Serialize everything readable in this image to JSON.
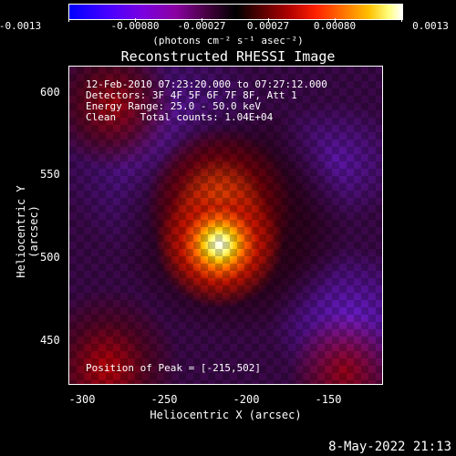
{
  "colorbar": {
    "tick_labels": [
      "-0.0013",
      "-0.00080",
      "-0.00027",
      "0.00027",
      "0.00080",
      "0.0013"
    ],
    "units": "(photons cm⁻² s⁻¹ asec⁻²)"
  },
  "plot": {
    "title": "Reconstructed RHESSI Image",
    "xlabel": "Heliocentric X (arcsec)",
    "ylabel": "Heliocentric Y (arcsec)",
    "x_ticks": [
      "-300",
      "-250",
      "-200",
      "-150"
    ],
    "y_ticks": [
      "600",
      "550",
      "500",
      "450"
    ],
    "info_lines": [
      "12-Feb-2010 07:23:20.000 to 07:27:12.000",
      "Detectors: 3F 4F 5F 6F 7F 8F, Att 1",
      "Energy Range: 25.0 - 50.0 keV",
      "Clean    Total counts: 1.04E+04"
    ],
    "peak_label": "Position of Peak = [-215,502]"
  },
  "footer": {
    "timestamp": "8-May-2022 21:13"
  }
}
